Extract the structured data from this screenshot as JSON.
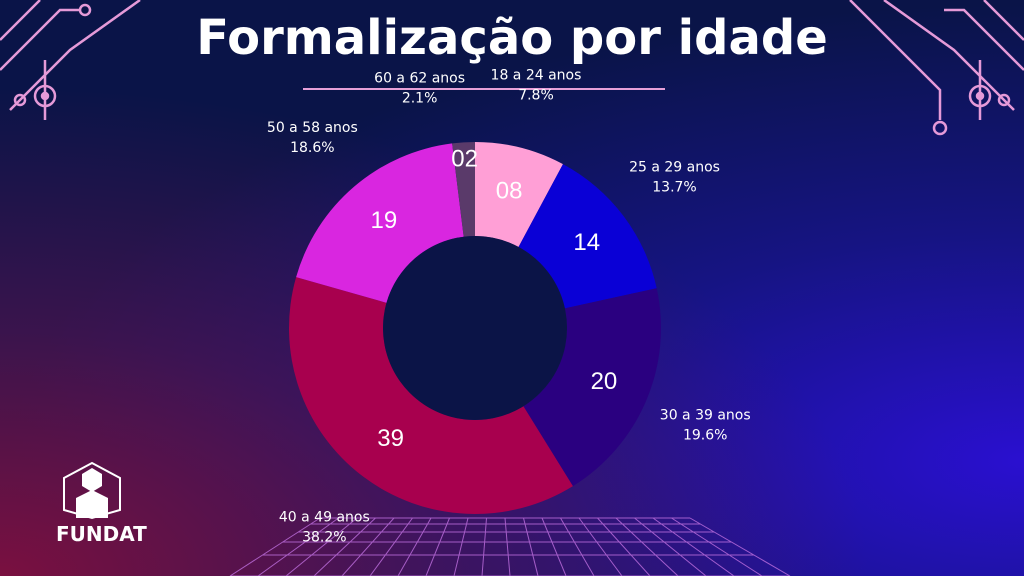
{
  "title": "Formalização por idade",
  "logo": {
    "name": "FUNDAT"
  },
  "chart_data": {
    "type": "pie",
    "donut": true,
    "title": "Formalização por idade",
    "categories": [
      "18 a 24 anos",
      "25 a 29 anos",
      "30 a 39 anos",
      "40 a 49 anos",
      "50 a 58 anos",
      "60 a 62 anos"
    ],
    "values": [
      8,
      14,
      20,
      39,
      19,
      2
    ],
    "value_labels": [
      "08",
      "14",
      "20",
      "39",
      "19",
      "02"
    ],
    "percent_labels": [
      "7.8%",
      "13.7%",
      "19.6%",
      "38.2%",
      "18.6%",
      "2.1%"
    ],
    "colors": [
      "#ff9fd6",
      "#0a00d6",
      "#2a0080",
      "#a8004e",
      "#d926e0",
      "#5a3a6a"
    ]
  }
}
